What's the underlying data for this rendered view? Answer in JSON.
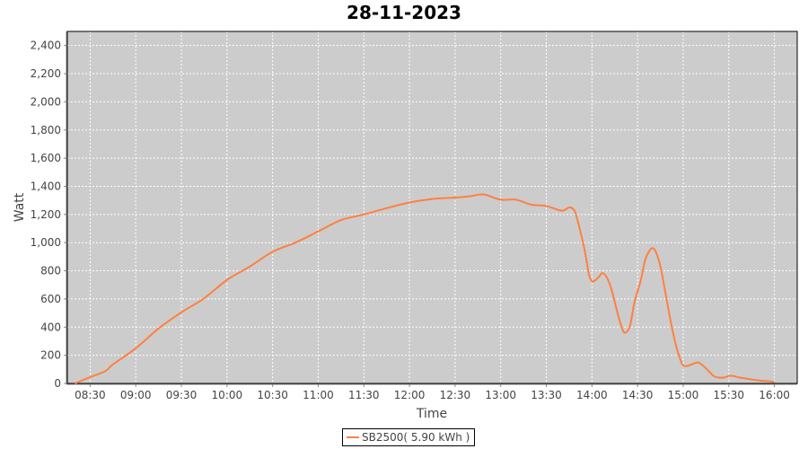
{
  "chart_data": {
    "type": "line",
    "title": "28-11-2023",
    "xlabel": "Time",
    "ylabel": "Watt",
    "ylim": [
      0,
      2500
    ],
    "xlim": [
      "08:15",
      "16:15"
    ],
    "yticks": [
      0,
      200,
      400,
      600,
      800,
      1000,
      1200,
      1400,
      1600,
      1800,
      2000,
      2200,
      2400
    ],
    "ytick_labels": [
      "0",
      "200",
      "400",
      "600",
      "800",
      "1,000",
      "1,200",
      "1,400",
      "1,600",
      "1,800",
      "2,000",
      "2,200",
      "2,400"
    ],
    "xticks": [
      "08:30",
      "09:00",
      "09:30",
      "10:00",
      "10:30",
      "11:00",
      "11:30",
      "12:00",
      "12:30",
      "13:00",
      "13:30",
      "14:00",
      "14:30",
      "15:00",
      "15:30",
      "16:00"
    ],
    "grid": true,
    "background": "#cccccc",
    "legend_placement": "bottom",
    "series": [
      {
        "name": "SB2500( 5.90 kWh )",
        "color": "#ff8040",
        "x": [
          "08:20",
          "08:30",
          "08:40",
          "08:45",
          "09:00",
          "09:15",
          "09:30",
          "09:45",
          "10:00",
          "10:15",
          "10:30",
          "10:45",
          "11:00",
          "11:15",
          "11:30",
          "11:45",
          "12:00",
          "12:15",
          "12:30",
          "12:40",
          "12:45",
          "12:50",
          "13:00",
          "13:10",
          "13:20",
          "13:30",
          "13:40",
          "13:45",
          "13:48",
          "13:50",
          "13:55",
          "13:58",
          "14:00",
          "14:02",
          "14:05",
          "14:07",
          "14:10",
          "14:13",
          "14:17",
          "14:20",
          "14:22",
          "14:25",
          "14:28",
          "14:32",
          "14:35",
          "14:38",
          "14:40",
          "14:42",
          "14:45",
          "14:48",
          "14:52",
          "14:55",
          "14:58",
          "15:00",
          "15:03",
          "15:07",
          "15:10",
          "15:13",
          "15:17",
          "15:20",
          "15:23",
          "15:27",
          "15:30",
          "15:33",
          "15:37",
          "15:43",
          "15:50",
          "15:57",
          "16:00"
        ],
        "y": [
          0,
          45,
          88,
          135,
          250,
          390,
          505,
          605,
          735,
          830,
          935,
          1000,
          1080,
          1160,
          1200,
          1245,
          1285,
          1310,
          1320,
          1330,
          1340,
          1340,
          1305,
          1305,
          1270,
          1260,
          1227,
          1250,
          1235,
          1180,
          957,
          777,
          727,
          731,
          763,
          784,
          748,
          663,
          493,
          387,
          360,
          408,
          578,
          727,
          876,
          946,
          961,
          935,
          833,
          663,
          429,
          280,
          174,
          127,
          125,
          142,
          148,
          127,
          85,
          53,
          42,
          42,
          53,
          53,
          42,
          32,
          21,
          15,
          10
        ]
      }
    ]
  }
}
